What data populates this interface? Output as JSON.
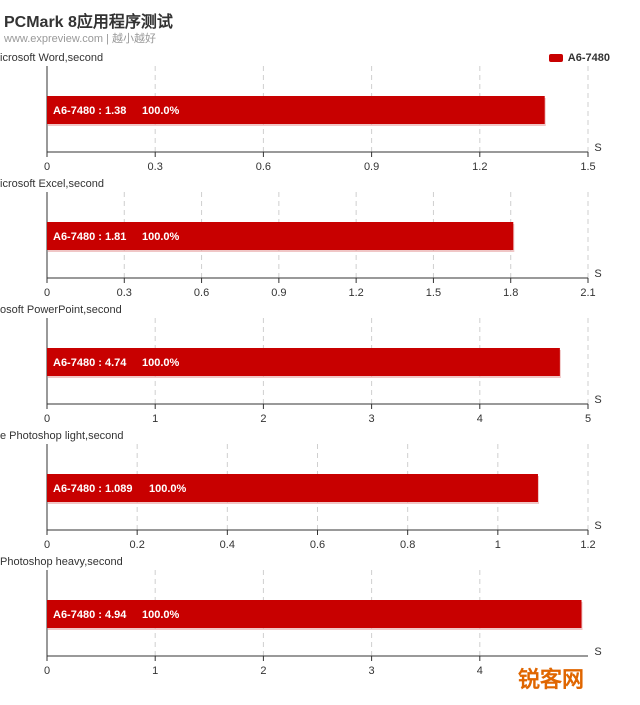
{
  "header": {
    "title": "PCMark 8应用程序测试",
    "subtitle": "www.expreview.com | 越小越好"
  },
  "legend": {
    "label": "A6-7480",
    "color": "#c80000"
  },
  "watermark": {
    "text": "锐客网"
  },
  "chart_data": [
    {
      "type": "bar",
      "title": "icrosoft Word,second",
      "unit": "S",
      "series": [
        {
          "name": "A6-7480",
          "values": [
            1.38
          ]
        }
      ],
      "bar_label": "A6-7480 : 1.38",
      "percent_label": "100.0%",
      "ticks": [
        "0",
        "0.3",
        "0.6",
        "0.9",
        "1.2",
        "1.5"
      ],
      "xlim": [
        0,
        1.5
      ],
      "grid": true,
      "legend_position": "top-right"
    },
    {
      "type": "bar",
      "title": "icrosoft Excel,second",
      "unit": "S",
      "series": [
        {
          "name": "A6-7480",
          "values": [
            1.81
          ]
        }
      ],
      "bar_label": "A6-7480 : 1.81",
      "percent_label": "100.0%",
      "ticks": [
        "0",
        "0.3",
        "0.6",
        "0.9",
        "1.2",
        "1.5",
        "1.8",
        "2.1"
      ],
      "xlim": [
        0,
        2.1
      ],
      "grid": true
    },
    {
      "type": "bar",
      "title": "osoft PowerPoint,second",
      "unit": "S",
      "series": [
        {
          "name": "A6-7480",
          "values": [
            4.74
          ]
        }
      ],
      "bar_label": "A6-7480 : 4.74",
      "percent_label": "100.0%",
      "ticks": [
        "0",
        "1",
        "2",
        "3",
        "4",
        "5"
      ],
      "xlim": [
        0,
        5
      ],
      "grid": true
    },
    {
      "type": "bar",
      "title": "e Photoshop light,second",
      "unit": "S",
      "series": [
        {
          "name": "A6-7480",
          "values": [
            1.089
          ]
        }
      ],
      "bar_label": "A6-7480 : 1.089",
      "percent_label": "100.0%",
      "ticks": [
        "0",
        "0.2",
        "0.4",
        "0.6",
        "0.8",
        "1",
        "1.2"
      ],
      "xlim": [
        0,
        1.2
      ],
      "grid": true
    },
    {
      "type": "bar",
      "title": "Photoshop heavy,second",
      "unit": "S",
      "series": [
        {
          "name": "A6-7480",
          "values": [
            4.94
          ]
        }
      ],
      "bar_label": "A6-7480 : 4.94",
      "percent_label": "100.0%",
      "ticks": [
        "0",
        "1",
        "2",
        "3",
        "4"
      ],
      "xlim": [
        0,
        5
      ],
      "grid": true
    }
  ]
}
